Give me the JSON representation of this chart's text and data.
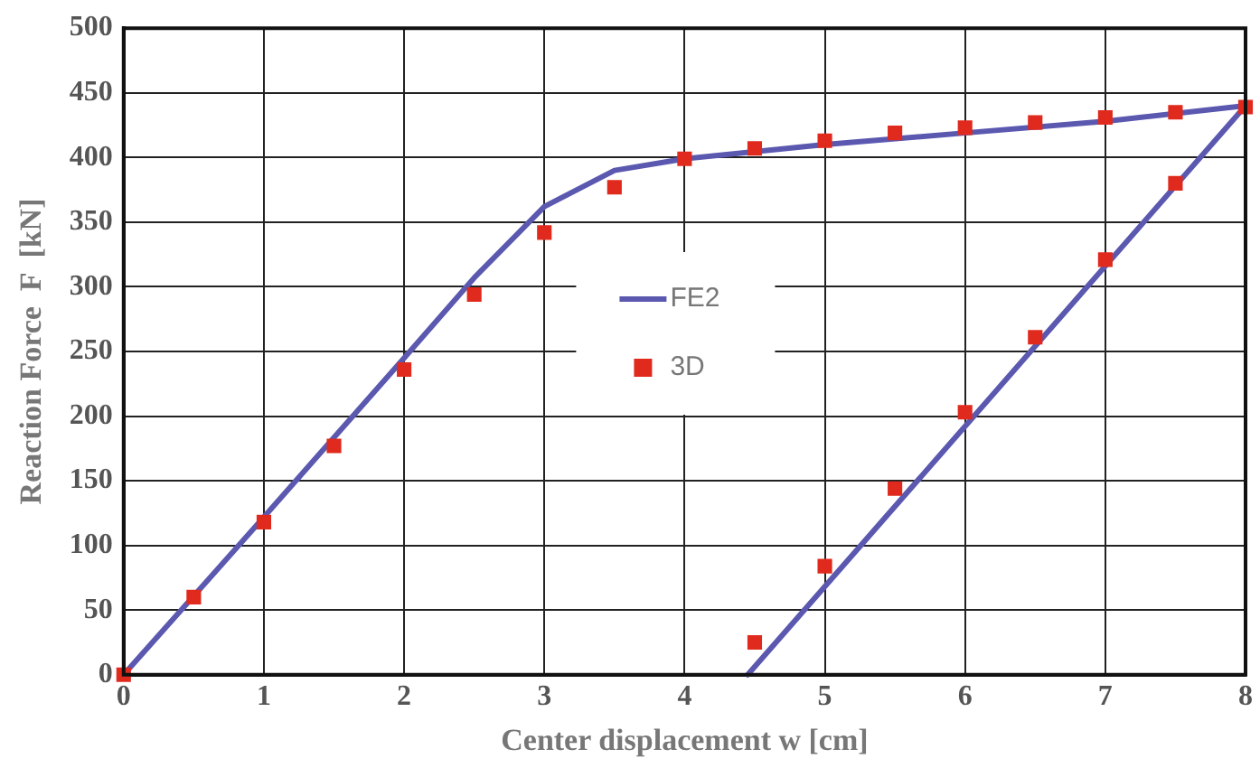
{
  "chart_data": {
    "type": "line",
    "xlabel": "Center displacement w [cm]",
    "ylabel": "Reaction Force  F  [kN]",
    "xlim": [
      0,
      8
    ],
    "xticks": [
      0,
      1,
      2,
      3,
      4,
      5,
      6,
      7,
      8
    ],
    "ylim": [
      0,
      500
    ],
    "yticks": [
      0,
      50,
      100,
      150,
      200,
      250,
      300,
      350,
      400,
      450,
      500
    ],
    "grid": true,
    "legend": "center",
    "series": [
      {
        "name": "FE2",
        "type": "line",
        "color": "#5b58b0",
        "marker": "none",
        "line_style": "solid",
        "x": [
          0,
          1,
          2,
          2.5,
          3,
          3.5,
          4,
          5,
          6,
          7,
          8,
          4.45
        ],
        "values": [
          0,
          122,
          245,
          307,
          362,
          390,
          399,
          410,
          419,
          428,
          440,
          0
        ]
      },
      {
        "name": "3D",
        "type": "scatter",
        "color": "#e02a1e",
        "marker": "square",
        "x": [
          0,
          0.5,
          1,
          1.5,
          2,
          2.5,
          3,
          3.5,
          4,
          4.5,
          5,
          5.5,
          6,
          6.5,
          7,
          7.5,
          8,
          7.5,
          7,
          6.5,
          6,
          5.5,
          5,
          4.5
        ],
        "values": [
          0,
          60,
          118,
          177,
          236,
          294,
          342,
          377,
          399,
          407,
          413,
          419,
          423,
          427,
          431,
          435,
          439,
          380,
          321,
          261,
          203,
          144,
          84,
          25
        ]
      }
    ]
  }
}
